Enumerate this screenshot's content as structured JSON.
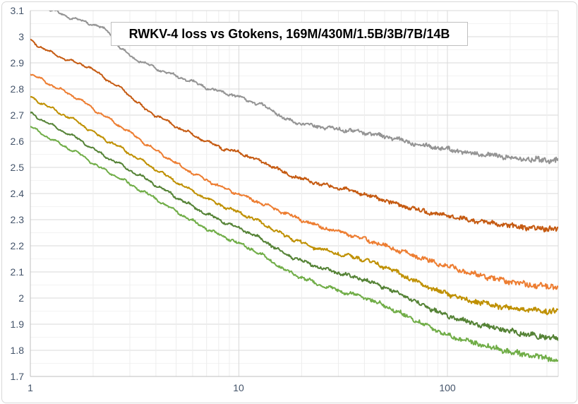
{
  "chart_data": {
    "type": "line",
    "title": "RWKV-4 loss vs Gtokens, 169M/430M/1.5B/3B/7B/14B",
    "xlabel": "",
    "ylabel": "",
    "legend": "none",
    "grid": "on",
    "x_axis": {
      "scale": "log10",
      "range": [
        1,
        340
      ],
      "tick_labels": [
        "1",
        "10",
        "100"
      ],
      "tick_values": [
        1,
        10,
        100
      ],
      "minor_gridlines": [
        2,
        3,
        4,
        5,
        6,
        7,
        8,
        9,
        20,
        30,
        40,
        50,
        60,
        70,
        80,
        90,
        200,
        300
      ]
    },
    "y_axis": {
      "scale": "linear",
      "range": [
        1.7,
        3.1
      ],
      "tick_labels": [
        "3.1",
        "3",
        "2.9",
        "2.8",
        "2.7",
        "2.6",
        "2.5",
        "2.4",
        "2.3",
        "2.2",
        "2.1",
        "2",
        "1.9",
        "1.8",
        "1.7"
      ],
      "tick_values": [
        3.1,
        3.0,
        2.9,
        2.8,
        2.7,
        2.6,
        2.5,
        2.4,
        2.3,
        2.2,
        2.1,
        2.0,
        1.9,
        1.8,
        1.7
      ],
      "minor_step": 0.05
    },
    "style": {
      "background": "#ffffff",
      "axis_line": "#bfbfbf",
      "grid_major": "#dadada",
      "grid_minor_h": "#f3f3f3",
      "grid_minor_v": "#ededed",
      "tick_label_color": "#44546a",
      "outer_border": "#d9d9d9",
      "title_border": "#bfbfbf"
    },
    "series": [
      {
        "name": "169M",
        "color": "#949494",
        "points": [
          [
            1,
            3.148
          ],
          [
            1.25,
            3.103
          ],
          [
            1.6,
            3.07
          ],
          [
            2.1,
            3.042
          ],
          [
            2.4,
            3.016
          ],
          [
            2.7,
            2.956
          ],
          [
            3.1,
            2.92
          ],
          [
            3.6,
            2.896
          ],
          [
            4.2,
            2.872
          ],
          [
            5,
            2.85
          ],
          [
            6,
            2.827
          ],
          [
            7.4,
            2.798
          ],
          [
            9,
            2.781
          ],
          [
            10,
            2.77
          ],
          [
            11.5,
            2.752
          ],
          [
            13,
            2.737
          ],
          [
            14.5,
            2.72
          ],
          [
            15.3,
            2.706
          ],
          [
            16.2,
            2.689
          ],
          [
            17.5,
            2.679
          ],
          [
            20,
            2.667
          ],
          [
            24,
            2.656
          ],
          [
            29,
            2.648
          ],
          [
            35,
            2.64
          ],
          [
            42,
            2.631
          ],
          [
            52,
            2.616
          ],
          [
            65,
            2.597
          ],
          [
            80,
            2.583
          ],
          [
            100,
            2.57
          ],
          [
            125,
            2.558
          ],
          [
            155,
            2.548
          ],
          [
            195,
            2.539
          ],
          [
            240,
            2.533
          ],
          [
            290,
            2.529
          ],
          [
            340,
            2.527
          ]
        ]
      },
      {
        "name": "430M",
        "color": "#c55a11",
        "points": [
          [
            1,
            2.985
          ],
          [
            1.3,
            2.932
          ],
          [
            1.65,
            2.9
          ],
          [
            1.9,
            2.886
          ],
          [
            2.15,
            2.856
          ],
          [
            2.5,
            2.82
          ],
          [
            2.8,
            2.795
          ],
          [
            3.2,
            2.755
          ],
          [
            3.55,
            2.722
          ],
          [
            4.2,
            2.69
          ],
          [
            5,
            2.656
          ],
          [
            6,
            2.625
          ],
          [
            7.4,
            2.59
          ],
          [
            8.6,
            2.57
          ],
          [
            10,
            2.557
          ],
          [
            12,
            2.532
          ],
          [
            14,
            2.51
          ],
          [
            16.2,
            2.482
          ],
          [
            19,
            2.462
          ],
          [
            23,
            2.442
          ],
          [
            26,
            2.432
          ],
          [
            31.5,
            2.418
          ],
          [
            38,
            2.402
          ],
          [
            46,
            2.383
          ],
          [
            56,
            2.362
          ],
          [
            66,
            2.345
          ],
          [
            77,
            2.333
          ],
          [
            100,
            2.315
          ],
          [
            125,
            2.3
          ],
          [
            155,
            2.288
          ],
          [
            195,
            2.277
          ],
          [
            240,
            2.27
          ],
          [
            290,
            2.266
          ],
          [
            340,
            2.263
          ]
        ]
      },
      {
        "name": "1.5B",
        "color": "#ed7d31",
        "points": [
          [
            1,
            2.857
          ],
          [
            1.3,
            2.81
          ],
          [
            1.7,
            2.763
          ],
          [
            2.13,
            2.71
          ],
          [
            2.6,
            2.666
          ],
          [
            3.05,
            2.63
          ],
          [
            3.55,
            2.592
          ],
          [
            4.3,
            2.549
          ],
          [
            5.2,
            2.507
          ],
          [
            6.3,
            2.469
          ],
          [
            7.4,
            2.442
          ],
          [
            8.6,
            2.418
          ],
          [
            10,
            2.397
          ],
          [
            12,
            2.372
          ],
          [
            14,
            2.349
          ],
          [
            16.2,
            2.329
          ],
          [
            19,
            2.306
          ],
          [
            23,
            2.281
          ],
          [
            27,
            2.263
          ],
          [
            31.5,
            2.251
          ],
          [
            38,
            2.232
          ],
          [
            46,
            2.21
          ],
          [
            56,
            2.187
          ],
          [
            66,
            2.167
          ],
          [
            77,
            2.15
          ],
          [
            90,
            2.133
          ],
          [
            100,
            2.122
          ],
          [
            120,
            2.103
          ],
          [
            145,
            2.086
          ],
          [
            168,
            2.073
          ],
          [
            210,
            2.059
          ],
          [
            260,
            2.049
          ],
          [
            300,
            2.045
          ],
          [
            340,
            2.041
          ]
        ]
      },
      {
        "name": "3B",
        "color": "#bf9000",
        "points": [
          [
            1,
            2.77
          ],
          [
            1.3,
            2.72
          ],
          [
            1.7,
            2.673
          ],
          [
            2.13,
            2.62
          ],
          [
            2.6,
            2.584
          ],
          [
            3.05,
            2.549
          ],
          [
            3.55,
            2.519
          ],
          [
            4.3,
            2.477
          ],
          [
            5.2,
            2.437
          ],
          [
            6.3,
            2.399
          ],
          [
            7.4,
            2.371
          ],
          [
            8.6,
            2.348
          ],
          [
            10,
            2.328
          ],
          [
            12,
            2.3
          ],
          [
            14,
            2.271
          ],
          [
            16.2,
            2.243
          ],
          [
            19,
            2.219
          ],
          [
            23,
            2.194
          ],
          [
            27,
            2.178
          ],
          [
            31.5,
            2.166
          ],
          [
            36,
            2.156
          ],
          [
            41,
            2.145
          ],
          [
            48,
            2.124
          ],
          [
            57,
            2.099
          ],
          [
            67,
            2.072
          ],
          [
            77,
            2.048
          ],
          [
            90,
            2.028
          ],
          [
            100,
            2.015
          ],
          [
            120,
            1.996
          ],
          [
            145,
            1.982
          ],
          [
            168,
            1.972
          ],
          [
            210,
            1.96
          ],
          [
            260,
            1.953
          ],
          [
            300,
            1.95
          ],
          [
            340,
            1.947
          ]
        ]
      },
      {
        "name": "7B",
        "color": "#548235",
        "points": [
          [
            1,
            2.708
          ],
          [
            1.3,
            2.656
          ],
          [
            1.7,
            2.609
          ],
          [
            2.13,
            2.556
          ],
          [
            2.6,
            2.519
          ],
          [
            3.05,
            2.486
          ],
          [
            3.55,
            2.458
          ],
          [
            4.3,
            2.418
          ],
          [
            5.2,
            2.379
          ],
          [
            6.3,
            2.341
          ],
          [
            7.4,
            2.313
          ],
          [
            8.6,
            2.29
          ],
          [
            10,
            2.268
          ],
          [
            12,
            2.239
          ],
          [
            14,
            2.207
          ],
          [
            16.2,
            2.174
          ],
          [
            19,
            2.149
          ],
          [
            23,
            2.124
          ],
          [
            27,
            2.106
          ],
          [
            31.5,
            2.092
          ],
          [
            36,
            2.08
          ],
          [
            41,
            2.068
          ],
          [
            48,
            2.046
          ],
          [
            57,
            2.021
          ],
          [
            67,
            1.995
          ],
          [
            77,
            1.972
          ],
          [
            90,
            1.948
          ],
          [
            100,
            1.933
          ],
          [
            120,
            1.913
          ],
          [
            145,
            1.897
          ],
          [
            168,
            1.887
          ],
          [
            210,
            1.869
          ],
          [
            260,
            1.856
          ],
          [
            300,
            1.85
          ],
          [
            340,
            1.845
          ]
        ]
      },
      {
        "name": "14B",
        "color": "#70ad47",
        "points": [
          [
            1,
            2.656
          ],
          [
            1.3,
            2.602
          ],
          [
            1.7,
            2.554
          ],
          [
            2.13,
            2.502
          ],
          [
            2.6,
            2.465
          ],
          [
            3.05,
            2.432
          ],
          [
            3.55,
            2.404
          ],
          [
            4.3,
            2.364
          ],
          [
            5.2,
            2.324
          ],
          [
            6.3,
            2.285
          ],
          [
            7.4,
            2.256
          ],
          [
            8.6,
            2.232
          ],
          [
            10,
            2.21
          ],
          [
            12,
            2.18
          ],
          [
            14,
            2.147
          ],
          [
            16.2,
            2.112
          ],
          [
            19,
            2.086
          ],
          [
            23,
            2.059
          ],
          [
            27,
            2.04
          ],
          [
            31.5,
            2.025
          ],
          [
            36,
            2.012
          ],
          [
            41,
            1.999
          ],
          [
            48,
            1.976
          ],
          [
            57,
            1.95
          ],
          [
            67,
            1.923
          ],
          [
            77,
            1.899
          ],
          [
            90,
            1.875
          ],
          [
            100,
            1.859
          ],
          [
            120,
            1.838
          ],
          [
            145,
            1.821
          ],
          [
            168,
            1.81
          ],
          [
            210,
            1.791
          ],
          [
            260,
            1.777
          ],
          [
            300,
            1.77
          ],
          [
            340,
            1.764
          ]
        ]
      }
    ]
  }
}
